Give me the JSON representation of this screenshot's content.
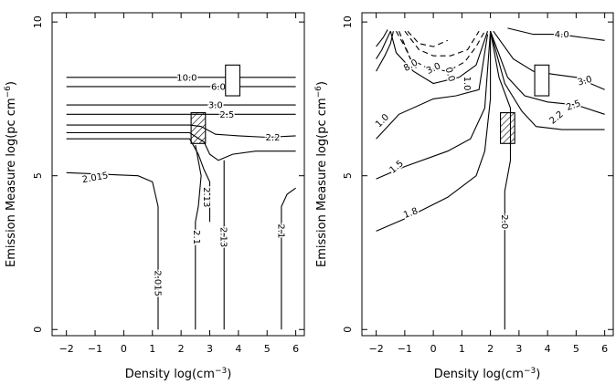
{
  "chart_data": [
    {
      "type": "contour",
      "xlabel_main": "Density log(cm",
      "xlabel_sup": "−3",
      "xlabel_tail": ")",
      "ylabel_main": "Emission Measure log(pc cm",
      "ylabel_sup": "−6",
      "ylabel_tail": ")",
      "xlim": [
        -2.5,
        6.3
      ],
      "ylim": [
        -0.2,
        10.3
      ],
      "xticks": [
        -2,
        -1,
        0,
        1,
        2,
        3,
        4,
        5,
        6
      ],
      "xtick_labels": [
        "−2",
        "−1",
        "0",
        "1",
        "2",
        "3",
        "4",
        "5",
        "6"
      ],
      "yticks": [
        0,
        5,
        10
      ],
      "ytick_labels": [
        "0",
        "5",
        "10"
      ],
      "contours": [
        {
          "label": "10.0",
          "style": "solid",
          "points": [
            [
              -2.0,
              8.2
            ],
            [
              6.0,
              8.2
            ]
          ],
          "label_at": [
            2.2,
            8.2
          ],
          "label_angle": 0
        },
        {
          "label": "6.0",
          "style": "solid",
          "points": [
            [
              -2.0,
              7.9
            ],
            [
              6.0,
              7.9
            ]
          ],
          "label_at": [
            3.3,
            7.9
          ],
          "label_angle": 0
        },
        {
          "label": "3.0",
          "style": "solid",
          "points": [
            [
              -2.0,
              7.3
            ],
            [
              6.0,
              7.3
            ]
          ],
          "label_at": [
            3.2,
            7.3
          ],
          "label_angle": 0
        },
        {
          "label": "2.5",
          "style": "solid",
          "points": [
            [
              -2.0,
              7.0
            ],
            [
              6.0,
              7.0
            ]
          ],
          "label_at": [
            3.6,
            7.0
          ],
          "label_angle": 0
        },
        {
          "label": "2.2",
          "style": "solid",
          "points": [
            [
              -2.0,
              6.65
            ],
            [
              2.3,
              6.65
            ],
            [
              2.7,
              6.6
            ],
            [
              3.2,
              6.35
            ],
            [
              4.0,
              6.3
            ],
            [
              5.0,
              6.25
            ],
            [
              6.0,
              6.3
            ]
          ],
          "label_at": [
            5.2,
            6.25
          ],
          "label_angle": 0
        },
        {
          "label": "",
          "style": "solid",
          "points": [
            [
              -2.0,
              6.4
            ],
            [
              2.3,
              6.4
            ],
            [
              2.8,
              6.1
            ],
            [
              3.0,
              5.7
            ],
            [
              3.3,
              5.5
            ],
            [
              3.8,
              5.7
            ],
            [
              4.6,
              5.8
            ],
            [
              6.0,
              5.8
            ]
          ],
          "label_at": null,
          "label_angle": 0
        },
        {
          "label": "2.13",
          "style": "solid",
          "points": [
            [
              -2.0,
              6.2
            ],
            [
              2.3,
              6.2
            ],
            [
              2.6,
              5.7
            ],
            [
              2.8,
              5.2
            ],
            [
              3.0,
              4.8
            ],
            [
              3.0,
              3.5
            ]
          ],
          "label_at": [
            2.9,
            4.3
          ],
          "label_angle": 90
        },
        {
          "label": "2.1",
          "style": "solid",
          "points": [
            [
              2.5,
              6.0
            ],
            [
              2.7,
              5.0
            ],
            [
              2.6,
              4.0
            ],
            [
              2.5,
              3.5
            ],
            [
              2.5,
              0
            ]
          ],
          "label_at": [
            2.55,
            3.0
          ],
          "label_angle": 90
        },
        {
          "label": "2.13",
          "style": "solid",
          "points": [
            [
              3.5,
              5.5
            ],
            [
              3.5,
              0
            ]
          ],
          "label_at": [
            3.5,
            3.0
          ],
          "label_angle": 90
        },
        {
          "label": "2.015",
          "style": "solid",
          "points": [
            [
              -2.0,
              5.1
            ],
            [
              0.5,
              5.0
            ],
            [
              1.0,
              4.8
            ],
            [
              1.2,
              4.0
            ],
            [
              1.2,
              0
            ]
          ],
          "label_at": [
            1.2,
            1.5
          ],
          "label_angle": 90
        },
        {
          "label": "2.1",
          "style": "solid",
          "points": [
            [
              5.5,
              0
            ],
            [
              5.5,
              4.0
            ],
            [
              5.7,
              4.4
            ],
            [
              6.0,
              4.6
            ]
          ],
          "label_at": [
            5.5,
            3.2
          ],
          "label_angle": 90
        }
      ],
      "extra_labels": [
        {
          "text": "2.015",
          "at": [
            -1.0,
            4.95
          ],
          "angle": -10
        }
      ],
      "boxes": [
        {
          "x": [
            2.35,
            2.85
          ],
          "y": [
            6.05,
            7.05
          ],
          "hatched": true
        },
        {
          "x": [
            3.55,
            4.05
          ],
          "y": [
            7.6,
            8.6
          ],
          "hatched": false
        }
      ]
    },
    {
      "type": "contour",
      "xlabel_main": "Density log(cm",
      "xlabel_sup": "−3",
      "xlabel_tail": ")",
      "ylabel_main": "Emission Measure log(pc cm",
      "ylabel_sup": "−6",
      "ylabel_tail": ")",
      "xlim": [
        -2.5,
        6.3
      ],
      "ylim": [
        -0.2,
        10.3
      ],
      "xticks": [
        -2,
        -1,
        0,
        1,
        2,
        3,
        4,
        5,
        6
      ],
      "xtick_labels": [
        "−2",
        "−1",
        "0",
        "1",
        "2",
        "3",
        "4",
        "5",
        "6"
      ],
      "yticks": [
        0,
        5,
        10
      ],
      "ytick_labels": [
        "0",
        "5",
        "10"
      ],
      "contours": [
        {
          "label": "4.0",
          "style": "solid",
          "points": [
            [
              2.6,
              9.8
            ],
            [
              3.5,
              9.6
            ],
            [
              4.4,
              9.6
            ],
            [
              5.2,
              9.5
            ],
            [
              6.0,
              9.4
            ]
          ],
          "label_at": [
            4.5,
            9.6
          ],
          "label_angle": 0
        },
        {
          "label": "3.0",
          "style": "solid",
          "points": [
            [
              2.1,
              9.7
            ],
            [
              2.8,
              8.8
            ],
            [
              3.5,
              8.4
            ],
            [
              4.2,
              8.3
            ],
            [
              5.0,
              8.2
            ],
            [
              6.0,
              7.8
            ]
          ],
          "label_at": [
            5.3,
            8.1
          ],
          "label_angle": -15
        },
        {
          "label": "2.5",
          "style": "solid",
          "points": [
            [
              2.0,
              9.7
            ],
            [
              2.6,
              8.2
            ],
            [
              3.2,
              7.6
            ],
            [
              4.0,
              7.4
            ],
            [
              5.0,
              7.3
            ],
            [
              6.0,
              7.0
            ]
          ],
          "label_at": [
            4.9,
            7.3
          ],
          "label_angle": -20
        },
        {
          "label": "2.2",
          "style": "solid",
          "points": [
            [
              2.0,
              9.7
            ],
            [
              2.5,
              8.0
            ],
            [
              3.1,
              7.1
            ],
            [
              3.6,
              6.6
            ],
            [
              4.5,
              6.5
            ],
            [
              6.0,
              6.5
            ]
          ],
          "label_at": [
            4.3,
            6.9
          ],
          "label_angle": -40
        },
        {
          "label": "2.0",
          "style": "solid",
          "points": [
            [
              2.0,
              9.7
            ],
            [
              2.3,
              8.2
            ],
            [
              2.7,
              7.2
            ],
            [
              2.7,
              5.5
            ],
            [
              2.5,
              4.5
            ],
            [
              2.5,
              0
            ]
          ],
          "label_at": [
            2.5,
            3.5
          ],
          "label_angle": 90
        },
        {
          "label": "1.8",
          "style": "solid",
          "points": [
            [
              -2.0,
              3.2
            ],
            [
              -1.0,
              3.6
            ],
            [
              0.5,
              4.3
            ],
            [
              1.5,
              5.0
            ],
            [
              1.8,
              5.8
            ],
            [
              2.0,
              7.5
            ],
            [
              2.0,
              9.7
            ]
          ],
          "label_at": [
            -0.8,
            3.8
          ],
          "label_angle": -20
        },
        {
          "label": "1.5",
          "style": "solid",
          "points": [
            [
              -2.0,
              4.9
            ],
            [
              -1.0,
              5.3
            ],
            [
              0.5,
              5.8
            ],
            [
              1.3,
              6.2
            ],
            [
              1.8,
              7.2
            ],
            [
              2.0,
              9.7
            ]
          ],
          "label_at": [
            -1.3,
            5.3
          ],
          "label_angle": -40
        },
        {
          "label": "1.0",
          "style": "solid",
          "points": [
            [
              -2.0,
              6.2
            ],
            [
              -1.2,
              7.0
            ],
            [
              0.0,
              7.5
            ],
            [
              0.8,
              7.6
            ],
            [
              1.6,
              7.8
            ],
            [
              1.9,
              9.6
            ]
          ],
          "label_at": [
            -1.8,
            6.8
          ],
          "label_angle": -45
        },
        {
          "label": "1.0",
          "style": "solid",
          "points": [
            [
              -1.5,
              9.7
            ],
            [
              -1.3,
              9.0
            ],
            [
              -0.7,
              8.4
            ],
            [
              0.0,
              8.0
            ],
            [
              0.9,
              8.2
            ],
            [
              1.5,
              8.6
            ],
            [
              1.9,
              9.7
            ]
          ],
          "label_at": [
            1.2,
            8.0
          ],
          "label_angle": 90
        },
        {
          "label": "0.0",
          "style": "dashed",
          "points": [
            [
              -1.2,
              9.7
            ],
            [
              -0.8,
              8.8
            ],
            [
              -0.2,
              8.5
            ],
            [
              0.5,
              8.4
            ],
            [
              1.1,
              8.7
            ],
            [
              1.5,
              9.2
            ],
            [
              1.8,
              9.7
            ]
          ],
          "label_at": [
            0.6,
            8.3
          ],
          "label_angle": 75
        },
        {
          "label": "3.0",
          "style": "dashed",
          "points": [
            [
              -1.0,
              9.7
            ],
            [
              -0.5,
              9.1
            ],
            [
              0.0,
              8.9
            ],
            [
              0.6,
              8.9
            ],
            [
              1.2,
              9.1
            ],
            [
              1.6,
              9.7
            ]
          ],
          "label_at": [
            0.0,
            8.5
          ],
          "label_angle": -25
        },
        {
          "label": "8.0",
          "style": "dashed",
          "points": [
            [
              -0.9,
              9.7
            ],
            [
              -0.5,
              9.3
            ],
            [
              0.0,
              9.2
            ],
            [
              0.5,
              9.4
            ]
          ],
          "label_at": [
            -0.8,
            8.6
          ],
          "label_angle": -30
        },
        {
          "label": "",
          "style": "dashed",
          "points": [
            [
              -1.3,
              9.7
            ],
            [
              -1.0,
              9.2
            ],
            [
              -0.8,
              8.8
            ],
            [
              -0.6,
              8.5
            ]
          ],
          "label_at": null,
          "label_angle": 0
        },
        {
          "label": "",
          "style": "solid",
          "points": [
            [
              -2.0,
              8.4
            ],
            [
              -1.7,
              8.9
            ],
            [
              -1.5,
              9.3
            ],
            [
              -1.4,
              9.7
            ]
          ],
          "label_at": null,
          "label_angle": 0
        },
        {
          "label": "",
          "style": "solid",
          "points": [
            [
              -2.0,
              8.8
            ],
            [
              -1.8,
              9.1
            ],
            [
              -1.6,
              9.5
            ],
            [
              -1.5,
              9.7
            ]
          ],
          "label_at": null,
          "label_angle": 0
        },
        {
          "label": "",
          "style": "solid",
          "points": [
            [
              -2.0,
              9.2
            ],
            [
              -1.75,
              9.5
            ],
            [
              -1.6,
              9.75
            ]
          ],
          "label_at": null,
          "label_angle": 0
        }
      ],
      "extra_labels": [],
      "boxes": [
        {
          "x": [
            2.35,
            2.85
          ],
          "y": [
            6.05,
            7.05
          ],
          "hatched": true
        },
        {
          "x": [
            3.55,
            4.05
          ],
          "y": [
            7.6,
            8.6
          ],
          "hatched": false
        }
      ]
    }
  ]
}
